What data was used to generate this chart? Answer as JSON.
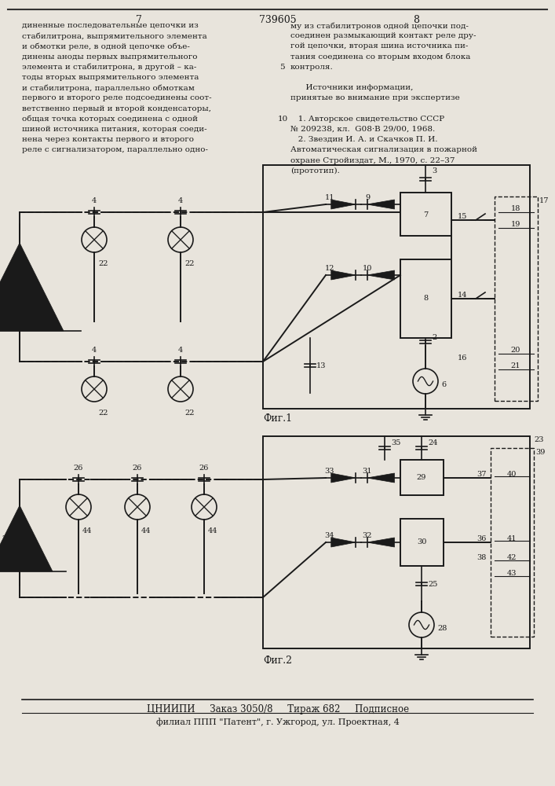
{
  "page_bg": "#e8e4dc",
  "text_color": "#1a1a1a",
  "fig1_caption": "Фиг.1",
  "fig2_caption": "Фиг.2",
  "footer_line1": "ЦНИИПИ     Заказ 3050/8     Тираж 682     Подписное",
  "footer_line2": "филиал ППП \"Патент\", г. Ужгород, ул. Проектная, 4",
  "col1_lines": [
    "диненные последовательные цепочки из",
    "стабилитрона, выпрямительного элемента",
    "и обмотки реле, в одной цепочке объе-",
    "динены аноды первых выпрямительного",
    "элемента и стабилитрона, в другой – ка-",
    "тоды вторых выпрямительного элемента",
    "и стабилитрона, параллельно обмоткам",
    "первого и второго реле подсоединены соот-",
    "ветственно первый и второй конденсаторы,",
    "общая точка которых соединена с одной",
    "шиной источника питания, которая соеди-",
    "нена через контакты первого и второго",
    "реле с сигнализатором, параллельно одно-"
  ],
  "col2_lines": [
    "му из стабилитронов одной цепочки под-",
    "соединен размыкающий контакт реле дру-",
    "гой цепочки, вторая шина источника пи-",
    "тания соединена со вторым входом блока",
    "контроля.",
    "",
    "      Источники информации,",
    "принятые во внимание при экспертизе",
    "",
    "   1. Авторское свидетельство СССР",
    "№ 209238, кл.  G08·В 29/00, 1968.",
    "   2. Звездин И. А. и Скачков П. И.",
    "Автоматическая сигнализация в пожарной",
    "охране Стройиздат, М., 1970, с. 22–37",
    "(прототип)."
  ]
}
